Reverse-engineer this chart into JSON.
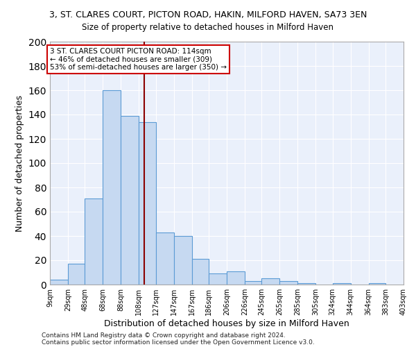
{
  "title1": "3, ST. CLARES COURT, PICTON ROAD, HAKIN, MILFORD HAVEN, SA73 3EN",
  "title2": "Size of property relative to detached houses in Milford Haven",
  "xlabel": "Distribution of detached houses by size in Milford Haven",
  "ylabel": "Number of detached properties",
  "bar_color": "#c6d9f1",
  "bar_edge_color": "#5b9bd5",
  "bg_color": "#eaf0fb",
  "grid_color": "#ffffff",
  "vline_x": 114,
  "vline_color": "#8b0000",
  "annotation_box_edge": "#cc0000",
  "annotation_lines": [
    "3 ST. CLARES COURT PICTON ROAD: 114sqm",
    "← 46% of detached houses are smaller (309)",
    "53% of semi-detached houses are larger (350) →"
  ],
  "bins": [
    9,
    29,
    48,
    68,
    88,
    108,
    127,
    147,
    167,
    186,
    206,
    226,
    245,
    265,
    285,
    305,
    324,
    344,
    364,
    383,
    403
  ],
  "heights": [
    4,
    17,
    71,
    160,
    139,
    134,
    43,
    40,
    21,
    9,
    11,
    3,
    5,
    3,
    1,
    0,
    1,
    0,
    1,
    0,
    0
  ],
  "xlim_left": 9,
  "xlim_right": 403,
  "ylim": [
    0,
    200
  ],
  "yticks": [
    0,
    20,
    40,
    60,
    80,
    100,
    120,
    140,
    160,
    180,
    200
  ],
  "footer1": "Contains HM Land Registry data © Crown copyright and database right 2024.",
  "footer2": "Contains public sector information licensed under the Open Government Licence v3.0."
}
